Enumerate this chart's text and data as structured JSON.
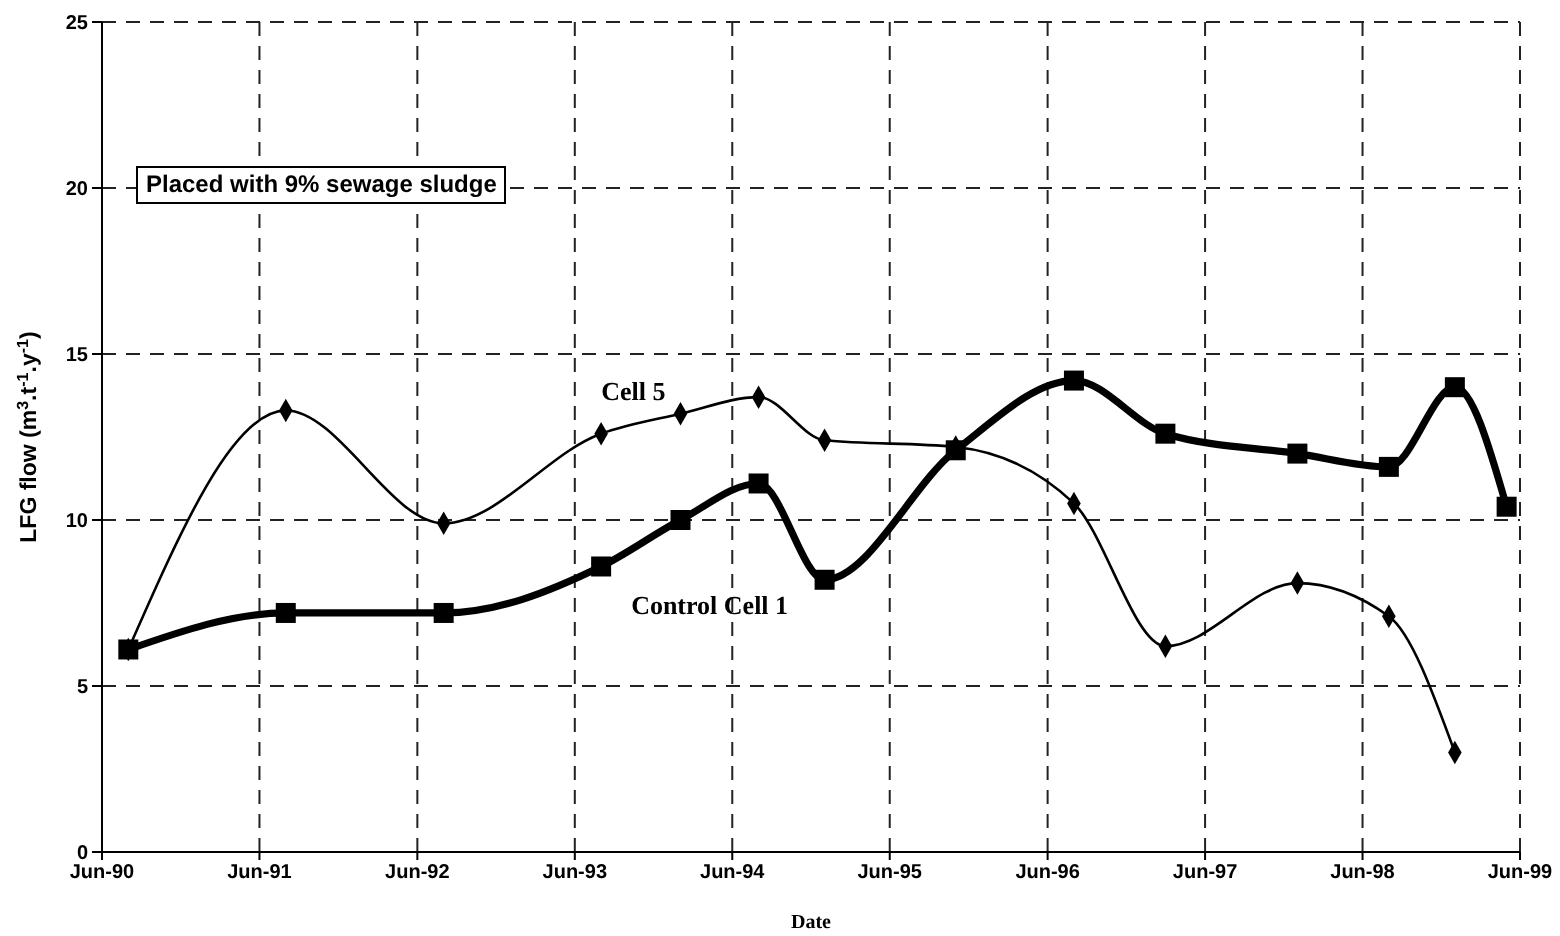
{
  "chart_data": {
    "type": "line",
    "xlabel": "Date",
    "ylabel": "LFG flow (m$^{3}$.t$^{-1}$.y$^{-1}$)",
    "annotations": [
      "Placed with 9% sewage sludge"
    ],
    "x": [
      "1990-08",
      "1991-08",
      "1992-08",
      "1993-08",
      "1994-02",
      "1994-08",
      "1995-01",
      "1995-11",
      "1996-08",
      "1997-03",
      "1998-01",
      "1998-08",
      "1999-01",
      "1999-05"
    ],
    "series": [
      {
        "name": "Cell 5",
        "color": "#000000",
        "marker": "diamond",
        "values": [
          6.1,
          13.3,
          9.9,
          12.6,
          13.2,
          13.7,
          12.4,
          12.2,
          10.5,
          6.2,
          8.1,
          7.1,
          3.0,
          null
        ]
      },
      {
        "name": "Control Cell 1",
        "color": "#000000",
        "marker": "square",
        "values": [
          6.1,
          7.2,
          7.2,
          8.6,
          10.0,
          11.1,
          8.2,
          12.1,
          14.2,
          12.6,
          12.0,
          11.6,
          14.0,
          10.4
        ]
      }
    ],
    "xlim": [
      "1990-06",
      "1999-06"
    ],
    "xticks": [
      {
        "value": "1990-06",
        "label": "Jun-90"
      },
      {
        "value": "1991-06",
        "label": "Jun-91"
      },
      {
        "value": "1992-06",
        "label": "Jun-92"
      },
      {
        "value": "1993-06",
        "label": "Jun-93"
      },
      {
        "value": "1994-06",
        "label": "Jun-94"
      },
      {
        "value": "1995-06",
        "label": "Jun-95"
      },
      {
        "value": "1996-06",
        "label": "Jun-96"
      },
      {
        "value": "1997-06",
        "label": "Jun-97"
      },
      {
        "value": "1998-06",
        "label": "Jun-98"
      },
      {
        "value": "1999-06",
        "label": "Jun-99"
      }
    ],
    "ylim": [
      0,
      25
    ],
    "yticks": [
      0,
      5,
      10,
      15,
      20,
      25
    ],
    "grid": true
  }
}
